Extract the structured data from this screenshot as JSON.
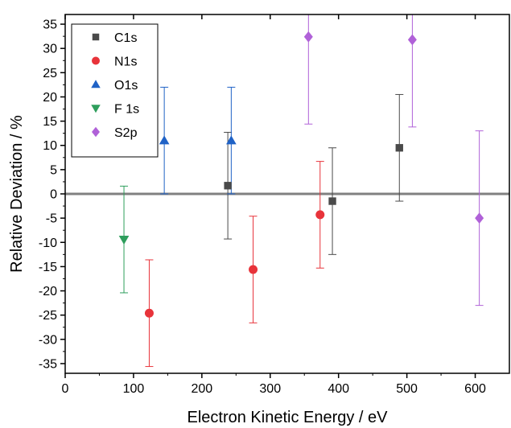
{
  "chart_data": {
    "type": "scatter",
    "title": "",
    "xlabel": "Electron Kinetic Energy / eV",
    "ylabel": "Relative Deviation / %",
    "xlim": [
      0,
      650
    ],
    "ylim": [
      -37,
      37
    ],
    "x_ticks": [
      0,
      100,
      200,
      300,
      400,
      500,
      600
    ],
    "x_tick_labels": [
      "0",
      "100",
      "200",
      "300",
      "400",
      "500",
      "600"
    ],
    "y_ticks": [
      35,
      30,
      25,
      20,
      15,
      10,
      5,
      0,
      -5,
      -10,
      -15,
      -20,
      -25,
      -30,
      -35
    ],
    "y_tick_labels": [
      "35",
      "30",
      "25",
      "20",
      "15",
      "10",
      "5",
      "0",
      "-5",
      "-10",
      "-15",
      "-20",
      "-25",
      "-30",
      "-35"
    ],
    "grid": false,
    "legend_position": "top-left",
    "reference_line": {
      "y": 0,
      "color": "#808080"
    },
    "series": [
      {
        "name": "C1s",
        "marker": "square",
        "color": "#4a4a4a",
        "points": [
          {
            "x": 238,
            "y": 1.7,
            "err": 11.0
          },
          {
            "x": 391,
            "y": -1.5,
            "err": 11.0
          },
          {
            "x": 489,
            "y": 9.5,
            "err": 11.0
          }
        ]
      },
      {
        "name": "N1s",
        "marker": "circle",
        "color": "#e8333a",
        "points": [
          {
            "x": 123,
            "y": -24.6,
            "err": 11.0
          },
          {
            "x": 275,
            "y": -15.6,
            "err": 11.0
          },
          {
            "x": 373,
            "y": -4.3,
            "err": 11.0
          }
        ]
      },
      {
        "name": "O1s",
        "marker": "triangle-up",
        "color": "#1f62c6",
        "points": [
          {
            "x": 145,
            "y": 11.0,
            "err": 11.0
          },
          {
            "x": 243,
            "y": 11.0,
            "err": 11.0
          }
        ]
      },
      {
        "name": "F 1s",
        "marker": "triangle-down",
        "color": "#2e9e5c",
        "points": [
          {
            "x": 86,
            "y": -9.4,
            "err": 11.0
          }
        ]
      },
      {
        "name": "S2p",
        "marker": "diamond",
        "color": "#b061d8",
        "points": [
          {
            "x": 356,
            "y": 32.4,
            "err": 18.0
          },
          {
            "x": 508,
            "y": 31.8,
            "err": 18.0
          },
          {
            "x": 606,
            "y": -5.0,
            "err": 18.0
          }
        ]
      }
    ]
  }
}
